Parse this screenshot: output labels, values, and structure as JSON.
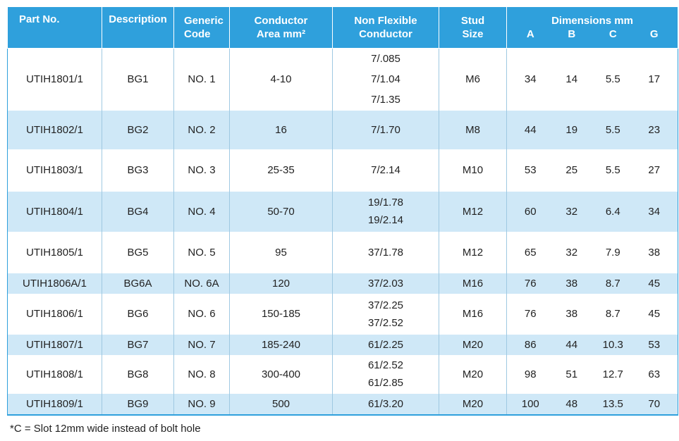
{
  "headers": {
    "part_no": "Part No.",
    "description": "Description",
    "generic_code": [
      "Generic",
      "Code"
    ],
    "conductor_area": [
      "Conductor",
      "Area mm²"
    ],
    "non_flexible": [
      "Non Flexible",
      "Conductor"
    ],
    "stud_size": [
      "Stud",
      "Size"
    ],
    "dimensions": "Dimensions mm",
    "dim_cols": [
      "A",
      "B",
      "C",
      "G"
    ]
  },
  "rows": [
    {
      "part": "UTIH1801/1",
      "desc": "BG1",
      "code": "NO. 1",
      "area": "4-10",
      "nf": [
        "7/.085",
        "7/1.04",
        "7/1.35"
      ],
      "stud": "M6",
      "a": "34",
      "b": "14",
      "c": "5.5",
      "g": "17"
    },
    {
      "part": "UTIH1802/1",
      "desc": "BG2",
      "code": "NO. 2",
      "area": "16",
      "nf": [
        "7/1.70"
      ],
      "stud": "M8",
      "a": "44",
      "b": "19",
      "c": "5.5",
      "g": "23"
    },
    {
      "part": "UTIH1803/1",
      "desc": "BG3",
      "code": "NO. 3",
      "area": "25-35",
      "nf": [
        "7/2.14"
      ],
      "stud": "M10",
      "a": "53",
      "b": "25",
      "c": "5.5",
      "g": "27"
    },
    {
      "part": "UTIH1804/1",
      "desc": "BG4",
      "code": "NO. 4",
      "area": "50-70",
      "nf": [
        "19/1.78",
        "19/2.14"
      ],
      "stud": "M12",
      "a": "60",
      "b": "32",
      "c": "6.4",
      "g": "34"
    },
    {
      "part": "UTIH1805/1",
      "desc": "BG5",
      "code": "NO. 5",
      "area": "95",
      "nf": [
        "37/1.78"
      ],
      "stud": "M12",
      "a": "65",
      "b": "32",
      "c": "7.9",
      "g": "38"
    },
    {
      "part": "UTIH1806A/1",
      "desc": "BG6A",
      "code": "NO. 6A",
      "area": "120",
      "nf": [
        "37/2.03"
      ],
      "stud": "M16",
      "a": "76",
      "b": "38",
      "c": "8.7",
      "g": "45"
    },
    {
      "part": "UTIH1806/1",
      "desc": "BG6",
      "code": "NO. 6",
      "area": "150-185",
      "nf": [
        "37/2.25",
        "37/2.52"
      ],
      "stud": "M16",
      "a": "76",
      "b": "38",
      "c": "8.7",
      "g": "45"
    },
    {
      "part": "UTIH1807/1",
      "desc": "BG7",
      "code": "NO. 7",
      "area": "185-240",
      "nf": [
        "61/2.25"
      ],
      "stud": "M20",
      "a": "86",
      "b": "44",
      "c": "10.3",
      "g": "53"
    },
    {
      "part": "UTIH1808/1",
      "desc": "BG8",
      "code": "NO. 8",
      "area": "300-400",
      "nf": [
        "61/2.52",
        "61/2.85"
      ],
      "stud": "M20",
      "a": "98",
      "b": "51",
      "c": "12.7",
      "g": "63"
    },
    {
      "part": "UTIH1809/1",
      "desc": "BG9",
      "code": "NO. 9",
      "area": "500",
      "nf": [
        "61/3.20"
      ],
      "stud": "M20",
      "a": "100",
      "b": "48",
      "c": "13.5",
      "g": "70"
    }
  ],
  "footnote": "*C = Slot 12mm wide instead of bolt hole",
  "colors": {
    "header_bg": "#2fa0dc",
    "stripe": "#cfe8f7"
  }
}
